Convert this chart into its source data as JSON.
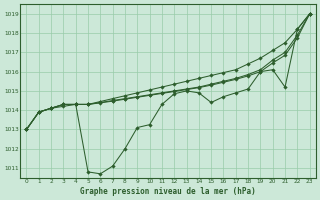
{
  "x": [
    0,
    1,
    2,
    3,
    4,
    5,
    6,
    7,
    8,
    9,
    10,
    11,
    12,
    13,
    14,
    15,
    16,
    17,
    18,
    19,
    20,
    21,
    22,
    23
  ],
  "line_main": [
    1013.0,
    1013.9,
    1014.1,
    1014.2,
    1014.3,
    1010.8,
    1010.7,
    1011.1,
    1012.0,
    1013.1,
    1013.25,
    1014.3,
    1014.85,
    1015.0,
    1014.9,
    1014.4,
    1014.7,
    1014.9,
    1015.1,
    1016.0,
    1016.1,
    1015.2,
    1018.2,
    1019.0
  ],
  "line_top": [
    1013.0,
    1013.9,
    1014.1,
    1014.3,
    1014.3,
    1014.3,
    1014.45,
    1014.6,
    1014.75,
    1014.9,
    1015.05,
    1015.2,
    1015.35,
    1015.5,
    1015.65,
    1015.8,
    1015.95,
    1016.1,
    1016.4,
    1016.7,
    1017.1,
    1017.5,
    1018.2,
    1019.0
  ],
  "line_mid1": [
    1013.0,
    1013.9,
    1014.1,
    1014.3,
    1014.3,
    1014.3,
    1014.4,
    1014.5,
    1014.6,
    1014.7,
    1014.8,
    1014.9,
    1015.0,
    1015.1,
    1015.2,
    1015.35,
    1015.5,
    1015.65,
    1015.85,
    1016.1,
    1016.6,
    1017.0,
    1017.9,
    1019.0
  ],
  "line_mid2": [
    1013.0,
    1013.9,
    1014.1,
    1014.3,
    1014.3,
    1014.3,
    1014.38,
    1014.47,
    1014.57,
    1014.67,
    1014.77,
    1014.87,
    1014.97,
    1015.07,
    1015.17,
    1015.3,
    1015.45,
    1015.6,
    1015.78,
    1016.0,
    1016.45,
    1016.85,
    1017.75,
    1019.0
  ],
  "ylim_min": 1010.5,
  "ylim_max": 1019.5,
  "yticks": [
    1011,
    1012,
    1013,
    1014,
    1015,
    1016,
    1017,
    1018,
    1019
  ],
  "bg_color": "#cce8d8",
  "grid_color": "#99ccaa",
  "line_color": "#2d5e2d",
  "xlabel": "Graphe pression niveau de la mer (hPa)"
}
